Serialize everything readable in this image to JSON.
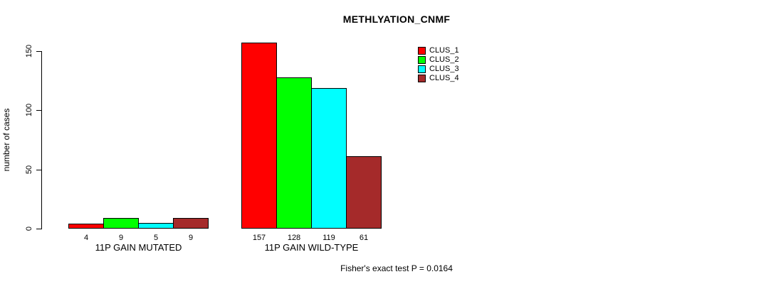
{
  "figure": {
    "title": "METHLYATION_CNMF",
    "ylabel": "number of cases",
    "footnote": "Fisher's exact test P = 0.0164"
  },
  "chart_data": {
    "type": "bar",
    "title": "METHLYATION_CNMF",
    "xlabel": "",
    "ylabel": "number of cases",
    "ylim": [
      0,
      150
    ],
    "yticks": [
      0,
      50,
      100,
      150
    ],
    "grid": false,
    "legend_position": "top-right",
    "bar_value_labels": true,
    "categories": [
      "11P GAIN MUTATED",
      "11P GAIN WILD-TYPE"
    ],
    "series": [
      {
        "name": "CLUS_1",
        "color": "#FF0000",
        "values": [
          4,
          157
        ]
      },
      {
        "name": "CLUS_2",
        "color": "#00FF00",
        "values": [
          9,
          128
        ]
      },
      {
        "name": "CLUS_3",
        "color": "#00FFFF",
        "values": [
          5,
          119
        ]
      },
      {
        "name": "CLUS_4",
        "color": "#A52A2A",
        "values": [
          9,
          61
        ]
      }
    ],
    "annotation": "Fisher's exact test P = 0.0164"
  },
  "colors": {
    "axis": "#000000",
    "background": "#FFFFFF"
  }
}
